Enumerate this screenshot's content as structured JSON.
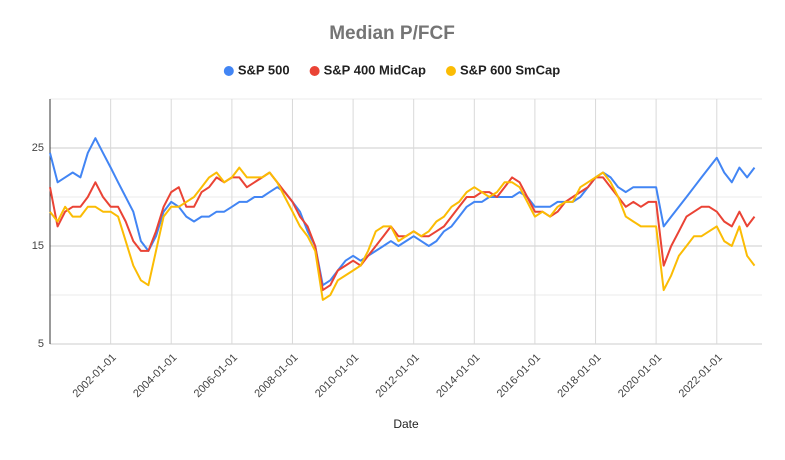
{
  "chart_data": {
    "type": "line",
    "title": "Median P/FCF",
    "x_label": "Date",
    "legend": "top",
    "grid": true,
    "xlim": [
      "2000-01-01",
      "2023-06-30"
    ],
    "xticks": [
      "2002-01-01",
      "2004-01-01",
      "2006-01-01",
      "2008-01-01",
      "2010-01-01",
      "2012-01-01",
      "2014-01-01",
      "2016-01-01",
      "2018-01-01",
      "2020-01-01",
      "2022-01-01"
    ],
    "ylim": [
      5,
      30
    ],
    "yticks": [
      5,
      15,
      25
    ],
    "minor_yticks": [
      10,
      20,
      30
    ],
    "x": [
      "2000-01-01",
      "2000-04-01",
      "2000-07-01",
      "2000-10-01",
      "2001-01-01",
      "2001-04-01",
      "2001-07-01",
      "2001-10-01",
      "2002-01-01",
      "2002-04-01",
      "2002-07-01",
      "2002-10-01",
      "2003-01-01",
      "2003-04-01",
      "2003-07-01",
      "2003-10-01",
      "2004-01-01",
      "2004-04-01",
      "2004-07-01",
      "2004-10-01",
      "2005-01-01",
      "2005-04-01",
      "2005-07-01",
      "2005-10-01",
      "2006-01-01",
      "2006-04-01",
      "2006-07-01",
      "2006-10-01",
      "2007-01-01",
      "2007-04-01",
      "2007-07-01",
      "2007-10-01",
      "2008-01-01",
      "2008-04-01",
      "2008-07-01",
      "2008-10-01",
      "2009-01-01",
      "2009-04-01",
      "2009-07-01",
      "2009-10-01",
      "2010-01-01",
      "2010-04-01",
      "2010-07-01",
      "2010-10-01",
      "2011-01-01",
      "2011-04-01",
      "2011-07-01",
      "2011-10-01",
      "2012-01-01",
      "2012-04-01",
      "2012-07-01",
      "2012-10-01",
      "2013-01-01",
      "2013-04-01",
      "2013-07-01",
      "2013-10-01",
      "2014-01-01",
      "2014-04-01",
      "2014-07-01",
      "2014-10-01",
      "2015-01-01",
      "2015-04-01",
      "2015-07-01",
      "2015-10-01",
      "2016-01-01",
      "2016-04-01",
      "2016-07-01",
      "2016-10-01",
      "2017-01-01",
      "2017-04-01",
      "2017-07-01",
      "2017-10-01",
      "2018-01-01",
      "2018-04-01",
      "2018-07-01",
      "2018-10-01",
      "2019-01-01",
      "2019-04-01",
      "2019-07-01",
      "2019-10-01",
      "2020-01-01",
      "2020-04-01",
      "2020-07-01",
      "2020-10-01",
      "2021-01-01",
      "2021-04-01",
      "2021-07-01",
      "2021-10-01",
      "2022-01-01",
      "2022-04-01",
      "2022-07-01",
      "2022-10-01",
      "2023-01-01",
      "2023-04-01"
    ],
    "series": [
      {
        "name": "S&P 500",
        "color": "#4285f4",
        "values": [
          24.5,
          21.5,
          22,
          22.5,
          22,
          24.5,
          26,
          24.5,
          23,
          21.5,
          20,
          18.5,
          15.5,
          14.5,
          16,
          18.5,
          19.5,
          19,
          18,
          17.5,
          18,
          18,
          18.5,
          18.5,
          19,
          19.5,
          19.5,
          20,
          20,
          20.5,
          21,
          20.5,
          19.5,
          18.5,
          16.5,
          15,
          11,
          11.5,
          12.5,
          13.5,
          14,
          13.5,
          14,
          14.5,
          15,
          15.5,
          15,
          15.5,
          16,
          15.5,
          15,
          15.5,
          16.5,
          17,
          18,
          19,
          19.5,
          19.5,
          20,
          20,
          20,
          20,
          20.5,
          20,
          19,
          19,
          19,
          19.5,
          19.5,
          19.5,
          20,
          21,
          22,
          22.5,
          22,
          21,
          20.5,
          21,
          21,
          21,
          21,
          17,
          18,
          19,
          20,
          21,
          22,
          23,
          24,
          22.5,
          21.5,
          23,
          22,
          23
        ]
      },
      {
        "name": "S&P 400 MidCap",
        "color": "#ea4335",
        "values": [
          21,
          17,
          18.5,
          19,
          19,
          20,
          21.5,
          20,
          19,
          19,
          17.5,
          15.5,
          14.5,
          14.5,
          16.5,
          19,
          20.5,
          21,
          19,
          19,
          20.5,
          21,
          22,
          21.5,
          22,
          22,
          21,
          21.5,
          22,
          22.5,
          21.5,
          20.5,
          19.5,
          18,
          17,
          15,
          10.5,
          11,
          12.5,
          13,
          13.5,
          13,
          14,
          15,
          16,
          17,
          16,
          16,
          16.5,
          16,
          16,
          16.5,
          17,
          18,
          19,
          20,
          20,
          20.5,
          20.5,
          20,
          21,
          22,
          21.5,
          20,
          18.5,
          18.5,
          18,
          18.5,
          19.5,
          20,
          20.5,
          21,
          22,
          22,
          21,
          20,
          19,
          19.5,
          19,
          19.5,
          19.5,
          13,
          15,
          16.5,
          18,
          18.5,
          19,
          19,
          18.5,
          17.5,
          17,
          18.5,
          17,
          18
        ]
      },
      {
        "name": "S&P 600 SmCap",
        "color": "#fbbc04",
        "values": [
          18.5,
          17.5,
          19,
          18,
          18,
          19,
          19,
          18.5,
          18.5,
          18,
          15.5,
          13,
          11.5,
          11,
          14.5,
          18,
          19,
          19,
          19.5,
          20,
          21,
          22,
          22.5,
          21.5,
          22,
          23,
          22,
          22,
          22,
          22.5,
          21.5,
          20,
          18.5,
          17,
          16,
          14.5,
          9.5,
          10,
          11.5,
          12,
          12.5,
          13,
          14.5,
          16.5,
          17,
          17,
          15.5,
          16,
          16.5,
          16,
          16.5,
          17.5,
          18,
          19,
          19.5,
          20.5,
          21,
          20.5,
          20,
          20.5,
          21.5,
          21.5,
          21,
          19.5,
          18,
          18.5,
          18,
          19,
          19.5,
          19.5,
          21,
          21.5,
          22,
          22.5,
          21.5,
          20,
          18,
          17.5,
          17,
          17,
          17,
          10.5,
          12,
          14,
          15,
          16,
          16,
          16.5,
          17,
          15.5,
          15,
          17,
          14,
          13
        ]
      }
    ]
  }
}
